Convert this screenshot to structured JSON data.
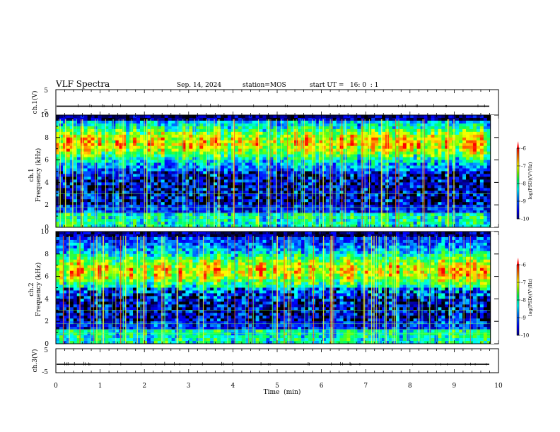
{
  "header": {
    "title": "VLF Spectra",
    "date": "Sep. 14, 2024",
    "station": "station=MOS",
    "start_ut": "start UT =   16: 0  : 1"
  },
  "chart_data": [
    {
      "type": "line",
      "name": "ch1-waveform",
      "ylabel": "ch.1(V)",
      "ylim": [
        -5,
        5
      ],
      "y_ticklabels": [
        "5",
        "-5"
      ],
      "xlim": [
        0,
        10
      ],
      "baseline_value": -1.5
    },
    {
      "type": "heatmap",
      "name": "ch1-spectrogram",
      "ylabel": "ch.1\nFrequency (kHz)",
      "ylabel_line1": "ch.1",
      "ylabel_line2": "Frequency (kHz)",
      "ylim": [
        0,
        10
      ],
      "y_ticklabels": [
        "0",
        "2",
        "4",
        "6",
        "8",
        "10"
      ],
      "xlim": [
        0,
        9.82
      ],
      "band_peak_khz": 7.5,
      "colorbar": {
        "label": "log(PSD)(V²/Hz)",
        "range": [
          -10,
          -6
        ],
        "ticklabels": [
          "-6",
          "-7",
          "-8",
          "-9",
          "-10"
        ]
      }
    },
    {
      "type": "heatmap",
      "name": "ch2-spectrogram",
      "ylabel": "ch.2\nFrequency (kHz)",
      "ylabel_line1": "ch.2",
      "ylabel_line2": "Frequency (kHz)",
      "ylim": [
        0,
        10
      ],
      "y_ticklabels": [
        "0",
        "2",
        "4",
        "6",
        "8",
        "10"
      ],
      "xlim": [
        0,
        9.82
      ],
      "band_peak_khz": 6.5,
      "colorbar": {
        "label": "log(PSD)(V²/Hz)",
        "range": [
          -10,
          -6
        ],
        "ticklabels": [
          "-6",
          "-7",
          "-8",
          "-9",
          "-10"
        ]
      }
    },
    {
      "type": "line",
      "name": "ch3-waveform",
      "ylabel": "ch.3(V)",
      "ylim": [
        -5,
        5
      ],
      "y_ticklabels": [
        "5",
        "-5"
      ],
      "xlim": [
        0,
        10
      ],
      "baseline_value": -1.5
    }
  ],
  "x_axis": {
    "label": "Time  (min)",
    "range": [
      0,
      10
    ],
    "ticklabels": [
      "0",
      "1",
      "2",
      "3",
      "4",
      "5",
      "6",
      "7",
      "8",
      "9",
      "10"
    ]
  },
  "colors": {
    "colormap": [
      "#00007f",
      "#0000ff",
      "#007fff",
      "#00ffff",
      "#00ff7f",
      "#7fff00",
      "#ffff00",
      "#ff7f00",
      "#ff0000"
    ],
    "background": "#000000",
    "axis": "#000000"
  }
}
